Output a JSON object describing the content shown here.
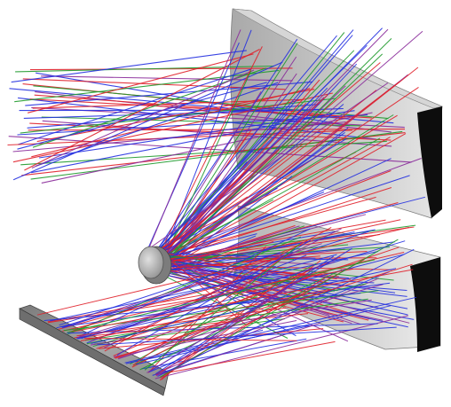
{
  "scene": {
    "kind": "optical ray trace render",
    "background_color": "#ffffff",
    "ray_colors": {
      "red": "#e0202a",
      "green": "#1f9a2c",
      "blue": "#2430e0",
      "purple": "#8a2a9a"
    },
    "components": [
      {
        "id": "upper-mirror",
        "type": "concave mirror",
        "face_color": "#c8c8c8",
        "edge_color": "#111111"
      },
      {
        "id": "lower-mirror",
        "type": "concave mirror",
        "face_color": "#c8c8c8",
        "edge_color": "#111111"
      },
      {
        "id": "lens",
        "type": "small lens",
        "face_color": "#b8b8b8",
        "edge_color": "#444444"
      },
      {
        "id": "detector-plate",
        "type": "flat plate",
        "face_color": "#9a9a9a",
        "edge_color": "#333333"
      }
    ]
  }
}
